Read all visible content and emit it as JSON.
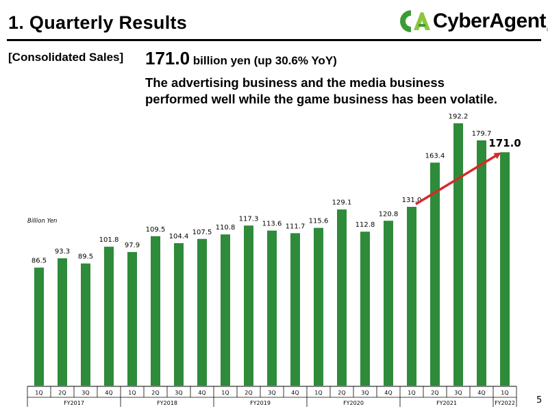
{
  "header": {
    "title": "1.  Quarterly Results",
    "logo_text": "CyberAgent",
    "logo_registered": "®",
    "logo_colors": {
      "primary": "#3b9c35",
      "secondary": "#8cc63f"
    }
  },
  "summary": {
    "section_label": "[Consolidated Sales]",
    "value": "171.0",
    "value_suffix": " billion yen (up 30.6% YoY)",
    "description_line1": "The advertising business and the media business",
    "description_line2": "performed well while the game business has been volatile."
  },
  "unit_label": "Billion Yen",
  "page_number": "5",
  "chart_data": {
    "type": "bar",
    "ylabel": "Billion Yen",
    "ylim": [
      0,
      200
    ],
    "bar_color": "#2e8b3a",
    "categories": [
      "1Q",
      "2Q",
      "3Q",
      "4Q",
      "1Q",
      "2Q",
      "3Q",
      "4Q",
      "1Q",
      "2Q",
      "3Q",
      "4Q",
      "1Q",
      "2Q",
      "3Q",
      "4Q",
      "1Q",
      "2Q",
      "3Q",
      "4Q",
      "1Q"
    ],
    "values": [
      86.5,
      93.3,
      89.5,
      101.8,
      97.9,
      109.5,
      104.4,
      107.5,
      110.8,
      117.3,
      113.6,
      111.7,
      115.6,
      129.1,
      112.8,
      120.8,
      131.0,
      163.4,
      192.2,
      179.7,
      171.0
    ],
    "labels": [
      "86.5",
      "93.3",
      "89.5",
      "101.8",
      "97.9",
      "109.5",
      "104.4",
      "107.5",
      "110.8",
      "117.3",
      "113.6",
      "111.7",
      "115.6",
      "129.1",
      "112.8",
      "120.8",
      "131.0",
      "163.4",
      "192.2",
      "179.7",
      "171.0"
    ],
    "fiscal_years": [
      {
        "name": "FY2017",
        "count": 4
      },
      {
        "name": "FY2018",
        "count": 4
      },
      {
        "name": "FY2019",
        "count": 4
      },
      {
        "name": "FY2020",
        "count": 4
      },
      {
        "name": "FY2021",
        "count": 4
      },
      {
        "name": "FY2022",
        "count": 1
      }
    ],
    "highlight_index": 20,
    "annotation": {
      "type": "arrow",
      "from_index": 16,
      "to_index": 20,
      "color": "#d42a2a"
    }
  }
}
